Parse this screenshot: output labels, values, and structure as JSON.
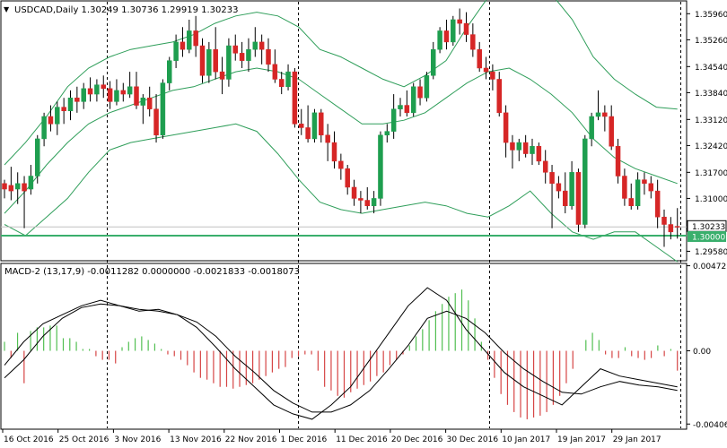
{
  "header": {
    "symbol_dropdown": "▼",
    "title": "USDCAD,Daily  1.30249 1.30736 1.29919 1.30233"
  },
  "macd": {
    "title": "MACD-2 (13,17,9) -0.0011282 0.0000000 -0.0021833 -0.0018073"
  },
  "colors": {
    "bull": "#1e9e4f",
    "bear": "#d62626",
    "band": "#2f9e5a",
    "level": "#3aaf6c",
    "hist_up": "#52bf52",
    "hist_down": "#d64545",
    "background": "#ffffff"
  },
  "chart_data": {
    "type": "candlestick",
    "symbol": "USDCAD",
    "timeframe": "Daily",
    "ohlc_last": {
      "open": 1.30249,
      "high": 1.30736,
      "low": 1.29919,
      "close": 1.30233
    },
    "price_axis": {
      "ticks": [
        "1.35960",
        "1.35260",
        "1.34540",
        "1.33840",
        "1.33120",
        "1.32420",
        "1.31700",
        "1.31000",
        "1.29580"
      ],
      "range": [
        1.2935,
        1.3628
      ]
    },
    "price_labels": {
      "current": "1.30233",
      "level": "1.30000"
    },
    "horizontal_level": 1.3,
    "macd_axis": {
      "ticks": [
        "0.004721",
        "0.00",
        "-0.004064"
      ],
      "range": [
        -0.0043,
        0.0048
      ]
    },
    "x_labels": [
      "16 Oct 2016",
      "25 Oct 2016",
      "3 Nov 2016",
      "13 Nov 2016",
      "22 Nov 2016",
      "1 Dec 2016",
      "11 Dec 2016",
      "20 Dec 2016",
      "30 Dec 2016",
      "10 Jan 2017",
      "19 Jan 2017",
      "29 Jan 2017"
    ],
    "separators_after_bar": [
      15,
      44,
      73,
      102
    ],
    "candles": [
      [
        1.314,
        1.315,
        1.31,
        1.3125
      ],
      [
        1.3135,
        1.3185,
        1.3095,
        1.312
      ],
      [
        1.3125,
        1.317,
        1.3085,
        1.314
      ],
      [
        1.314,
        1.316,
        1.302,
        1.312
      ],
      [
        1.3125,
        1.319,
        1.311,
        1.316
      ],
      [
        1.316,
        1.327,
        1.314,
        1.326
      ],
      [
        1.326,
        1.333,
        1.324,
        1.332
      ],
      [
        1.332,
        1.335,
        1.328,
        1.33
      ],
      [
        1.33,
        1.336,
        1.327,
        1.3345
      ],
      [
        1.3345,
        1.337,
        1.33,
        1.3335
      ],
      [
        1.3335,
        1.339,
        1.331,
        1.337
      ],
      [
        1.337,
        1.34,
        1.333,
        1.336
      ],
      [
        1.336,
        1.341,
        1.334,
        1.3395
      ],
      [
        1.3395,
        1.3425,
        1.336,
        1.338
      ],
      [
        1.338,
        1.342,
        1.336,
        1.3405
      ],
      [
        1.3405,
        1.343,
        1.337,
        1.3395
      ],
      [
        1.3395,
        1.3415,
        1.334,
        1.336
      ],
      [
        1.336,
        1.342,
        1.335,
        1.339
      ],
      [
        1.339,
        1.341,
        1.336,
        1.338
      ],
      [
        1.338,
        1.344,
        1.337,
        1.34
      ],
      [
        1.34,
        1.344,
        1.334,
        1.335
      ],
      [
        1.335,
        1.338,
        1.33,
        1.337
      ],
      [
        1.337,
        1.34,
        1.332,
        1.334
      ],
      [
        1.334,
        1.338,
        1.325,
        1.327
      ],
      [
        1.327,
        1.342,
        1.326,
        1.341
      ],
      [
        1.341,
        1.348,
        1.339,
        1.347
      ],
      [
        1.347,
        1.354,
        1.345,
        1.352
      ],
      [
        1.352,
        1.356,
        1.348,
        1.35
      ],
      [
        1.35,
        1.358,
        1.349,
        1.355
      ],
      [
        1.355,
        1.359,
        1.348,
        1.351
      ],
      [
        1.351,
        1.353,
        1.341,
        1.343
      ],
      [
        1.343,
        1.352,
        1.341,
        1.35
      ],
      [
        1.35,
        1.356,
        1.342,
        1.344
      ],
      [
        1.344,
        1.348,
        1.338,
        1.342
      ],
      [
        1.342,
        1.353,
        1.34,
        1.351
      ],
      [
        1.351,
        1.354,
        1.347,
        1.349
      ],
      [
        1.349,
        1.352,
        1.345,
        1.347
      ],
      [
        1.347,
        1.353,
        1.344,
        1.35
      ],
      [
        1.35,
        1.356,
        1.348,
        1.352
      ],
      [
        1.352,
        1.354,
        1.346,
        1.35
      ],
      [
        1.35,
        1.353,
        1.344,
        1.346
      ],
      [
        1.346,
        1.35,
        1.341,
        1.342
      ],
      [
        1.342,
        1.344,
        1.338,
        1.34
      ],
      [
        1.34,
        1.346,
        1.339,
        1.344
      ],
      [
        1.344,
        1.345,
        1.329,
        1.33
      ],
      [
        1.33,
        1.334,
        1.327,
        1.329
      ],
      [
        1.329,
        1.335,
        1.325,
        1.326
      ],
      [
        1.326,
        1.334,
        1.325,
        1.333
      ],
      [
        1.333,
        1.334,
        1.325,
        1.327
      ],
      [
        1.327,
        1.33,
        1.32,
        1.325
      ],
      [
        1.325,
        1.328,
        1.318,
        1.32
      ],
      [
        1.32,
        1.322,
        1.315,
        1.318
      ],
      [
        1.318,
        1.319,
        1.311,
        1.313
      ],
      [
        1.313,
        1.315,
        1.308,
        1.31
      ],
      [
        1.31,
        1.312,
        1.306,
        1.3095
      ],
      [
        1.3095,
        1.313,
        1.307,
        1.308
      ],
      [
        1.308,
        1.312,
        1.306,
        1.31
      ],
      [
        1.31,
        1.328,
        1.308,
        1.327
      ],
      [
        1.327,
        1.33,
        1.325,
        1.328
      ],
      [
        1.328,
        1.338,
        1.326,
        1.334
      ],
      [
        1.334,
        1.337,
        1.332,
        1.335
      ],
      [
        1.335,
        1.339,
        1.332,
        1.333
      ],
      [
        1.333,
        1.341,
        1.332,
        1.34
      ],
      [
        1.34,
        1.342,
        1.335,
        1.337
      ],
      [
        1.337,
        1.344,
        1.336,
        1.343
      ],
      [
        1.343,
        1.352,
        1.342,
        1.35
      ],
      [
        1.35,
        1.356,
        1.349,
        1.355
      ],
      [
        1.355,
        1.358,
        1.35,
        1.352
      ],
      [
        1.352,
        1.359,
        1.351,
        1.358
      ],
      [
        1.358,
        1.361,
        1.354,
        1.357
      ],
      [
        1.357,
        1.36,
        1.352,
        1.354
      ],
      [
        1.354,
        1.357,
        1.348,
        1.35
      ],
      [
        1.35,
        1.352,
        1.344,
        1.345
      ],
      [
        1.345,
        1.348,
        1.342,
        1.344
      ],
      [
        1.344,
        1.346,
        1.339,
        1.342
      ],
      [
        1.342,
        1.344,
        1.332,
        1.333
      ],
      [
        1.333,
        1.335,
        1.321,
        1.325
      ],
      [
        1.325,
        1.327,
        1.318,
        1.323
      ],
      [
        1.323,
        1.326,
        1.32,
        1.325
      ],
      [
        1.325,
        1.327,
        1.321,
        1.322
      ],
      [
        1.322,
        1.326,
        1.319,
        1.324
      ],
      [
        1.324,
        1.325,
        1.319,
        1.32
      ],
      [
        1.32,
        1.323,
        1.314,
        1.317
      ],
      [
        1.317,
        1.319,
        1.302,
        1.314
      ],
      [
        1.314,
        1.316,
        1.31,
        1.312
      ],
      [
        1.312,
        1.317,
        1.306,
        1.308
      ],
      [
        1.308,
        1.32,
        1.307,
        1.317
      ],
      [
        1.317,
        1.318,
        1.301,
        1.303
      ],
      [
        1.303,
        1.327,
        1.302,
        1.326
      ],
      [
        1.326,
        1.333,
        1.324,
        1.332
      ],
      [
        1.332,
        1.339,
        1.331,
        1.333
      ],
      [
        1.333,
        1.335,
        1.328,
        1.332
      ],
      [
        1.332,
        1.335,
        1.323,
        1.324
      ],
      [
        1.324,
        1.326,
        1.314,
        1.316
      ],
      [
        1.316,
        1.318,
        1.308,
        1.31
      ],
      [
        1.31,
        1.314,
        1.307,
        1.308
      ],
      [
        1.308,
        1.317,
        1.307,
        1.315
      ],
      [
        1.315,
        1.317,
        1.311,
        1.314
      ],
      [
        1.314,
        1.316,
        1.31,
        1.312
      ],
      [
        1.312,
        1.315,
        1.302,
        1.305
      ],
      [
        1.305,
        1.307,
        1.297,
        1.303
      ],
      [
        1.303,
        1.305,
        1.299,
        1.301
      ],
      [
        1.3025,
        1.3074,
        1.2992,
        1.3023
      ]
    ],
    "bands": {
      "upper": [
        1.319,
        1.325,
        1.332,
        1.34,
        1.345,
        1.348,
        1.35,
        1.351,
        1.352,
        1.354,
        1.357,
        1.359,
        1.36,
        1.359,
        1.356,
        1.35,
        1.348,
        1.345,
        1.342,
        1.34,
        1.343,
        1.347,
        1.356,
        1.364,
        1.368,
        1.369,
        1.365,
        1.358,
        1.348,
        1.342,
        1.338,
        1.3345,
        1.334
      ],
      "middle": [
        1.306,
        1.312,
        1.319,
        1.325,
        1.33,
        1.333,
        1.335,
        1.337,
        1.339,
        1.34,
        1.342,
        1.344,
        1.345,
        1.344,
        1.342,
        1.338,
        1.334,
        1.33,
        1.33,
        1.331,
        1.333,
        1.337,
        1.341,
        1.344,
        1.345,
        1.342,
        1.338,
        1.333,
        1.326,
        1.321,
        1.318,
        1.316,
        1.314
      ],
      "lower": [
        1.303,
        1.3,
        1.305,
        1.31,
        1.317,
        1.323,
        1.325,
        1.326,
        1.327,
        1.328,
        1.329,
        1.33,
        1.328,
        1.322,
        1.315,
        1.309,
        1.307,
        1.306,
        1.307,
        1.308,
        1.309,
        1.308,
        1.306,
        1.305,
        1.308,
        1.312,
        1.306,
        1.301,
        1.299,
        1.301,
        1.301,
        1.297,
        1.293
      ]
    },
    "macd_main": [
      -0.0008,
      0.0005,
      0.0015,
      0.002,
      0.0025,
      0.0028,
      0.0025,
      0.0022,
      0.0023,
      0.002,
      0.0013,
      0.0002,
      -0.001,
      -0.002,
      -0.003,
      -0.0035,
      -0.0038,
      -0.003,
      -0.002,
      -0.0005,
      0.001,
      0.0025,
      0.0035,
      0.0028,
      0.0012,
      0.0,
      -0.0012,
      -0.002,
      -0.0025,
      -0.003,
      -0.002,
      -0.001,
      -0.0014,
      -0.0016,
      -0.0018,
      -0.002
    ],
    "macd_signal": [
      -0.0015,
      -0.0005,
      0.0008,
      0.0018,
      0.0024,
      0.0026,
      0.0025,
      0.0023,
      0.0022,
      0.002,
      0.0016,
      0.0008,
      -0.0003,
      -0.0012,
      -0.0022,
      -0.0029,
      -0.0034,
      -0.0034,
      -0.003,
      -0.0022,
      -0.001,
      0.0003,
      0.0018,
      0.0022,
      0.0018,
      0.001,
      -0.0001,
      -0.001,
      -0.0017,
      -0.0023,
      -0.0024,
      -0.002,
      -0.0017,
      -0.0019,
      -0.002,
      -0.0022
    ],
    "macd_histogram": [
      0.0005,
      -0.0004,
      0.001,
      -0.0018,
      0.0011,
      0.0013,
      0.0013,
      0.0014,
      0.0014,
      0.0007,
      0.0007,
      0.0005,
      0.0001,
      0.0001,
      -0.0003,
      -0.0005,
      -0.0005,
      -0.0007,
      0.0002,
      0.0005,
      0.0007,
      0.0008,
      0.0006,
      0.0004,
      0.0001,
      -0.0002,
      -0.0003,
      -0.0005,
      -0.0008,
      -0.0012,
      -0.0015,
      -0.0016,
      -0.0018,
      -0.002,
      -0.002,
      -0.0021,
      -0.002,
      -0.0019,
      -0.0018,
      -0.0016,
      -0.0014,
      -0.0012,
      -0.001,
      -0.0009,
      -0.0004,
      -0.0003,
      -0.0002,
      -0.0002,
      -0.0011,
      -0.002,
      -0.0022,
      -0.0025,
      -0.0026,
      -0.0023,
      -0.0021,
      -0.0019,
      -0.0017,
      -0.0014,
      -0.0012,
      -0.0008,
      -0.0005,
      -0.0002,
      0.0003,
      0.0008,
      0.0012,
      0.0017,
      0.0022,
      0.0026,
      0.003,
      0.0032,
      0.0034,
      0.0028,
      0.0018,
      0.0005,
      -0.0005,
      -0.0015,
      -0.0024,
      -0.003,
      -0.0034,
      -0.0037,
      -0.0038,
      -0.0037,
      -0.0036,
      -0.0034,
      -0.003,
      -0.0025,
      -0.0018,
      -0.001,
      0.0,
      0.0006,
      0.001,
      0.0006,
      -0.0002,
      -0.0004,
      -0.0004,
      0.0002,
      -0.0003,
      -0.0004,
      -0.0005,
      -0.0004,
      0.0003,
      -0.0003,
      0.0001,
      -0.0011
    ]
  }
}
